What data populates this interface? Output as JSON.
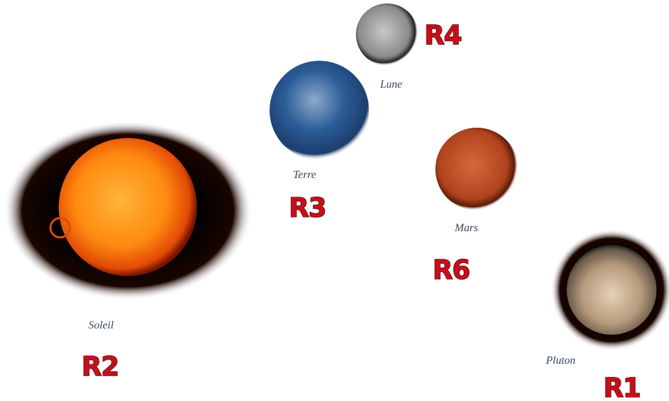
{
  "bodies": [
    {
      "name": "Soleil",
      "tag": "R2"
    },
    {
      "name": "Terre",
      "tag": "R3"
    },
    {
      "name": "Lune",
      "tag": "R4"
    },
    {
      "name": "Mars",
      "tag": "R6"
    },
    {
      "name": "Pluton",
      "tag": "R1"
    }
  ]
}
